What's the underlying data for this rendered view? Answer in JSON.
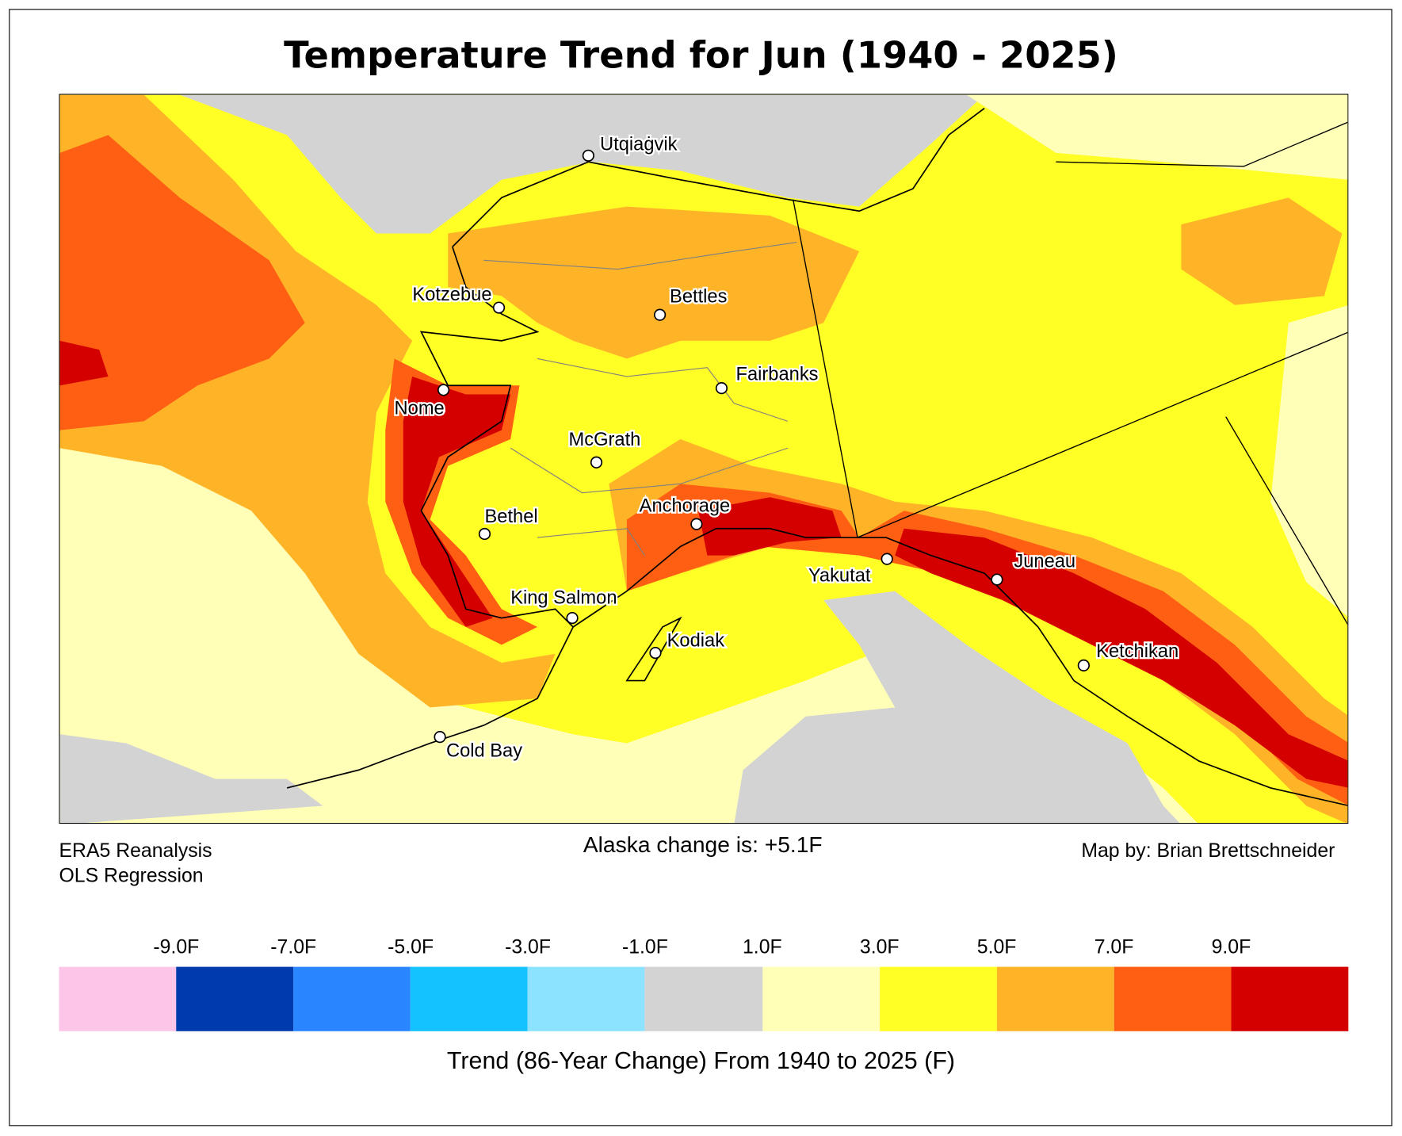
{
  "title": "Temperature Trend for Jun (1940 - 2025)",
  "notes": {
    "source_line1": "ERA5 Reanalysis",
    "source_line2": "OLS Regression",
    "alaska_change": "Alaska change is: +5.1F",
    "credit": "Map by: Brian Brettschneider"
  },
  "cities": [
    {
      "name": "Utqiaġvik"
    },
    {
      "name": "Kotzebue"
    },
    {
      "name": "Bettles"
    },
    {
      "name": "Fairbanks"
    },
    {
      "name": "Nome"
    },
    {
      "name": "McGrath"
    },
    {
      "name": "Anchorage"
    },
    {
      "name": "Bethel"
    },
    {
      "name": "King Salmon"
    },
    {
      "name": "Kodiak"
    },
    {
      "name": "Yakutat"
    },
    {
      "name": "Juneau"
    },
    {
      "name": "Ketchikan"
    },
    {
      "name": "Cold Bay"
    }
  ],
  "colorbar": {
    "label": "Trend (86-Year Change) From 1940 to 2025 (F)",
    "ticks": [
      "-9.0F",
      "-7.0F",
      "-5.0F",
      "-3.0F",
      "-1.0F",
      "1.0F",
      "3.0F",
      "5.0F",
      "7.0F",
      "9.0F"
    ],
    "colors": [
      "#fdc6e8",
      "#003bad",
      "#2a86ff",
      "#13c2ff",
      "#8ce3ff",
      "#d3d3d3",
      "#ffffb8",
      "#ffff25",
      "#ffb428",
      "#ff5f13",
      "#d40000"
    ]
  }
}
